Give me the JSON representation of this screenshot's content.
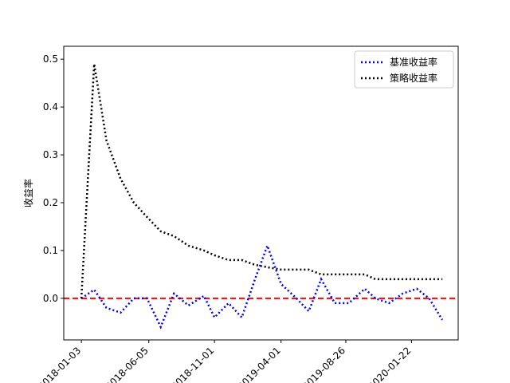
{
  "chart_data": {
    "type": "line",
    "ylabel": "收益率",
    "x": [
      "2018-01-03",
      "2018-02-01",
      "2018-03-01",
      "2018-04-02",
      "2018-05-02",
      "2018-06-01",
      "2018-07-02",
      "2018-08-01",
      "2018-09-03",
      "2018-10-08",
      "2018-11-01",
      "2018-12-03",
      "2019-01-02",
      "2019-02-01",
      "2019-03-01",
      "2019-04-01",
      "2019-05-06",
      "2019-06-03",
      "2019-07-01",
      "2019-08-01",
      "2019-09-02",
      "2019-10-08",
      "2019-11-01",
      "2019-12-02",
      "2020-01-02",
      "2020-02-03",
      "2020-03-02",
      "2020-04-01"
    ],
    "series": [
      {
        "name": "基准收益率",
        "color": "#0000ff",
        "values": [
          0,
          0.018,
          -0.02,
          -0.03,
          0,
          0,
          -0.06,
          0.01,
          -0.015,
          0.005,
          -0.04,
          -0.01,
          -0.04,
          0.04,
          0.11,
          0.03,
          0,
          -0.027,
          0.04,
          -0.01,
          -0.01,
          0.02,
          0,
          -0.01,
          0.01,
          0.02,
          0,
          -0.045
        ]
      },
      {
        "name": "策略收益率",
        "color": "#000000",
        "values": [
          0,
          0.49,
          0.33,
          0.25,
          0.2,
          0.17,
          0.14,
          0.13,
          0.11,
          0.1,
          0.09,
          0.08,
          0.08,
          0.07,
          0.065,
          0.06,
          0.06,
          0.06,
          0.05,
          0.05,
          0.05,
          0.05,
          0.04,
          0.04,
          0.04,
          0.04,
          0.04,
          0.04
        ]
      }
    ],
    "hline": {
      "value": 0,
      "color": "#ff0000"
    },
    "xlim": [
      "2017-11-24",
      "2020-05-07"
    ],
    "xticks": [
      "2018-01-03",
      "2018-06-05",
      "2018-11-01",
      "2019-04-01",
      "2019-08-26",
      "2020-01-22"
    ],
    "ylim": [
      -0.087,
      0.527
    ],
    "yticks": [
      {
        "value": 0,
        "label": "0.0"
      },
      0.1,
      0.2,
      0.3,
      0.4,
      0.5
    ],
    "legend": "upper right"
  }
}
